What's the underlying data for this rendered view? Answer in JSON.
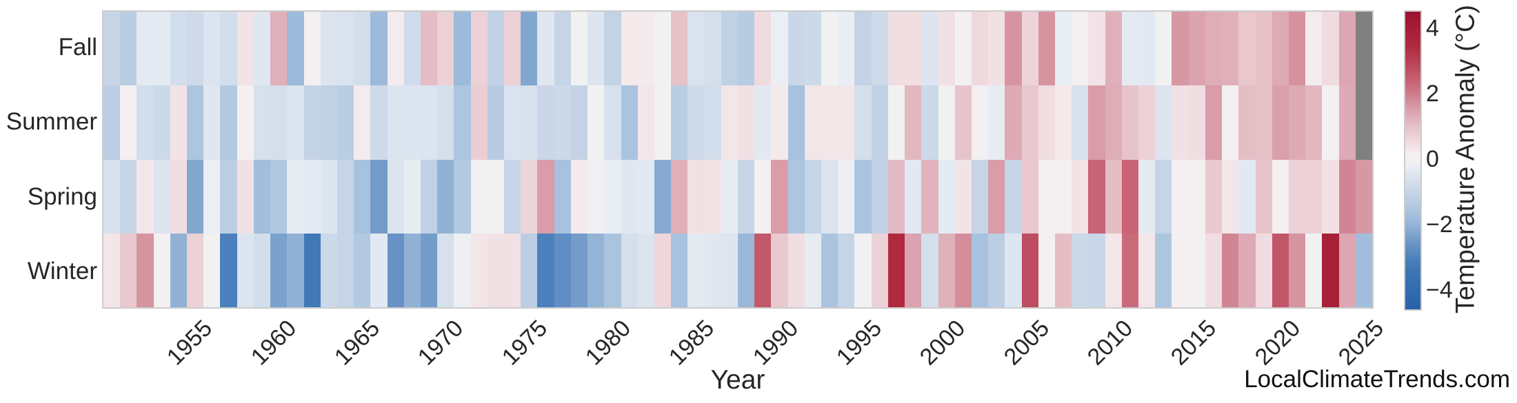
{
  "watermark": {
    "text": "LocalClimateTrends.com"
  },
  "chart_data": {
    "type": "heatmap",
    "title": "",
    "xlabel": "Year",
    "rows": [
      "Fall",
      "Summer",
      "Spring",
      "Winter"
    ],
    "x_start": 1950,
    "x_end": 2025,
    "x_ticks": [
      1955,
      1960,
      1965,
      1970,
      1975,
      1980,
      1985,
      1990,
      1995,
      2000,
      2005,
      2010,
      2015,
      2020,
      2025
    ],
    "colorbar": {
      "label": "Temperature Anomaly (°C)",
      "vmin": -4.55,
      "vmax": 4.55,
      "ticks": [
        {
          "value": 4,
          "label": "4"
        },
        {
          "value": 2,
          "label": "2"
        },
        {
          "value": 0,
          "label": "0"
        },
        {
          "value": -2,
          "label": "−2"
        },
        {
          "value": -4,
          "label": "−4"
        }
      ],
      "missing_color": "#808080"
    },
    "colormap": [
      [
        -4.55,
        "#2762aa"
      ],
      [
        -3.5,
        "#3a74b4"
      ],
      [
        -3.0,
        "#4c80bc"
      ],
      [
        -2.5,
        "#6c97c7"
      ],
      [
        -2.0,
        "#91b2d5"
      ],
      [
        -1.5,
        "#adc6e0"
      ],
      [
        -1.0,
        "#c5d4e6"
      ],
      [
        -0.5,
        "#dbe4ef"
      ],
      [
        -0.2,
        "#e9edf4"
      ],
      [
        0.0,
        "#f2f1f2"
      ],
      [
        0.2,
        "#f5eef0"
      ],
      [
        0.5,
        "#f1dee2"
      ],
      [
        1.0,
        "#e7c4cb"
      ],
      [
        1.5,
        "#dba3af"
      ],
      [
        2.0,
        "#cf7e8d"
      ],
      [
        2.5,
        "#c65e70"
      ],
      [
        3.0,
        "#b94258"
      ],
      [
        3.5,
        "#b02a3e"
      ],
      [
        4.55,
        "#9d1030"
      ]
    ],
    "series": [
      {
        "name": "Fall",
        "values": [
          -0.95,
          -1.25,
          -0.3,
          -0.3,
          -0.7,
          -0.8,
          -0.5,
          -0.7,
          0.4,
          -0.4,
          1.3,
          -1.8,
          0.1,
          -0.5,
          -0.55,
          -0.7,
          -1.8,
          0.25,
          -0.75,
          1.1,
          0.75,
          -1.8,
          0.75,
          -1.1,
          0.75,
          -2.2,
          -0.4,
          -1.0,
          0.0,
          -0.45,
          -1.05,
          0.3,
          0.3,
          0.0,
          1.05,
          -0.55,
          -0.65,
          -1.1,
          -1.3,
          0.55,
          -0.15,
          -0.9,
          -0.85,
          0.0,
          -0.2,
          -1.05,
          -0.8,
          0.5,
          0.5,
          -0.45,
          0.45,
          0.1,
          0.6,
          0.45,
          1.7,
          0.7,
          1.7,
          -0.2,
          0.1,
          0.4,
          1.3,
          -0.3,
          -0.35,
          0.0,
          1.65,
          1.5,
          1.35,
          1.3,
          0.95,
          1.05,
          1.4,
          1.75,
          0.25,
          0.55,
          1.45,
          null
        ]
      },
      {
        "name": "Summer",
        "values": [
          -1.2,
          0.15,
          -0.7,
          -0.85,
          0.4,
          -1.5,
          -0.4,
          -1.35,
          0.1,
          -0.6,
          -0.65,
          -0.5,
          -1.05,
          -1.1,
          -1.25,
          0.25,
          -0.8,
          -0.5,
          -0.45,
          -0.5,
          -0.65,
          -1.5,
          0.8,
          -1.3,
          -0.55,
          -0.6,
          -0.9,
          -0.85,
          -1.05,
          0.0,
          -0.6,
          -1.55,
          0.35,
          0.0,
          -1.25,
          -0.8,
          -0.7,
          0.35,
          0.45,
          -0.35,
          0.3,
          -1.6,
          0.35,
          0.35,
          0.35,
          -0.65,
          -1.1,
          0.0,
          1.2,
          -0.85,
          0.0,
          1.0,
          0.05,
          -0.25,
          1.4,
          0.95,
          0.5,
          0.3,
          -0.6,
          1.6,
          1.35,
          1.0,
          0.75,
          -0.5,
          0.45,
          0.5,
          1.6,
          0.1,
          1.1,
          1.05,
          1.55,
          1.4,
          1.2,
          0.05,
          1.4,
          null
        ]
      },
      {
        "name": "Spring",
        "values": [
          -0.6,
          -0.95,
          0.35,
          -0.5,
          0.5,
          -2.2,
          -0.15,
          -1.2,
          0.45,
          -1.7,
          -1.45,
          -0.25,
          -0.3,
          -0.45,
          -1.0,
          -1.6,
          -2.4,
          -0.5,
          -0.25,
          -1.1,
          -2.0,
          -1.4,
          -0.05,
          0.05,
          -1.0,
          0.7,
          1.6,
          -1.6,
          0.3,
          -0.05,
          -0.2,
          -0.4,
          -0.35,
          -2.15,
          1.3,
          0.45,
          0.4,
          -0.25,
          -0.95,
          0.15,
          1.6,
          -1.5,
          -1.0,
          -0.5,
          -0.1,
          -1.55,
          -1.1,
          1.15,
          -0.35,
          1.25,
          -0.3,
          0.4,
          -1.0,
          1.6,
          -0.95,
          0.95,
          0.05,
          0.05,
          0.4,
          2.4,
          1.1,
          2.4,
          -0.3,
          -1.0,
          0.1,
          0.15,
          0.9,
          0.35,
          -0.35,
          1.0,
          0.15,
          0.75,
          0.75,
          0.45,
          1.9,
          1.65
        ]
      },
      {
        "name": "Winter",
        "values": [
          0.35,
          0.9,
          1.7,
          0.15,
          -2.0,
          0.75,
          0.0,
          -3.0,
          -0.5,
          -0.7,
          -2.3,
          -2.0,
          -3.3,
          -0.85,
          -1.0,
          -1.4,
          -0.35,
          -2.6,
          -2.0,
          -2.4,
          -0.6,
          -0.1,
          0.35,
          0.45,
          0.45,
          -1.2,
          -3.0,
          -2.7,
          -2.4,
          -1.95,
          -1.55,
          -0.65,
          -0.5,
          0.65,
          -1.6,
          -0.3,
          -0.4,
          -0.45,
          -1.85,
          2.6,
          0.9,
          0.5,
          -0.25,
          -1.55,
          -1.0,
          0.0,
          0.75,
          3.5,
          1.5,
          -0.65,
          1.3,
          1.8,
          -1.6,
          -1.2,
          -0.45,
          2.8,
          0.15,
          1.1,
          -0.85,
          -0.9,
          0.35,
          2.3,
          0.35,
          -1.5,
          0.1,
          0.05,
          0.5,
          1.9,
          1.4,
          0.55,
          2.65,
          1.7,
          0.0,
          3.9,
          1.45,
          -1.7
        ]
      }
    ],
    "layout": {
      "grid": false,
      "legend": "colorbar-right"
    }
  }
}
